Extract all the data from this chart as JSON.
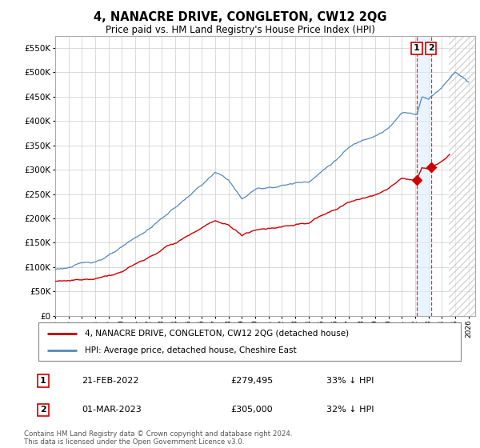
{
  "title": "4, NANACRE DRIVE, CONGLETON, CW12 2QG",
  "subtitle": "Price paid vs. HM Land Registry's House Price Index (HPI)",
  "legend_entry1": "4, NANACRE DRIVE, CONGLETON, CW12 2QG (detached house)",
  "legend_entry2": "HPI: Average price, detached house, Cheshire East",
  "transaction1_label": "1",
  "transaction1_date": "21-FEB-2022",
  "transaction1_price": "£279,495",
  "transaction1_info": "33% ↓ HPI",
  "transaction2_label": "2",
  "transaction2_date": "01-MAR-2023",
  "transaction2_price": "£305,000",
  "transaction2_info": "32% ↓ HPI",
  "footer": "Contains HM Land Registry data © Crown copyright and database right 2024.\nThis data is licensed under the Open Government Licence v3.0.",
  "color_red": "#cc0000",
  "color_blue": "#5588bb",
  "color_grid": "#cccccc",
  "ylim": [
    0,
    575000
  ],
  "yticks": [
    0,
    50000,
    100000,
    150000,
    200000,
    250000,
    300000,
    350000,
    400000,
    450000,
    500000,
    550000
  ],
  "transaction1_year": 2022.12,
  "transaction1_value": 279495,
  "transaction2_year": 2023.17,
  "transaction2_value": 305000,
  "xlim_start": 1995,
  "xlim_end": 2026.5,
  "hatch_start": 2024.5
}
